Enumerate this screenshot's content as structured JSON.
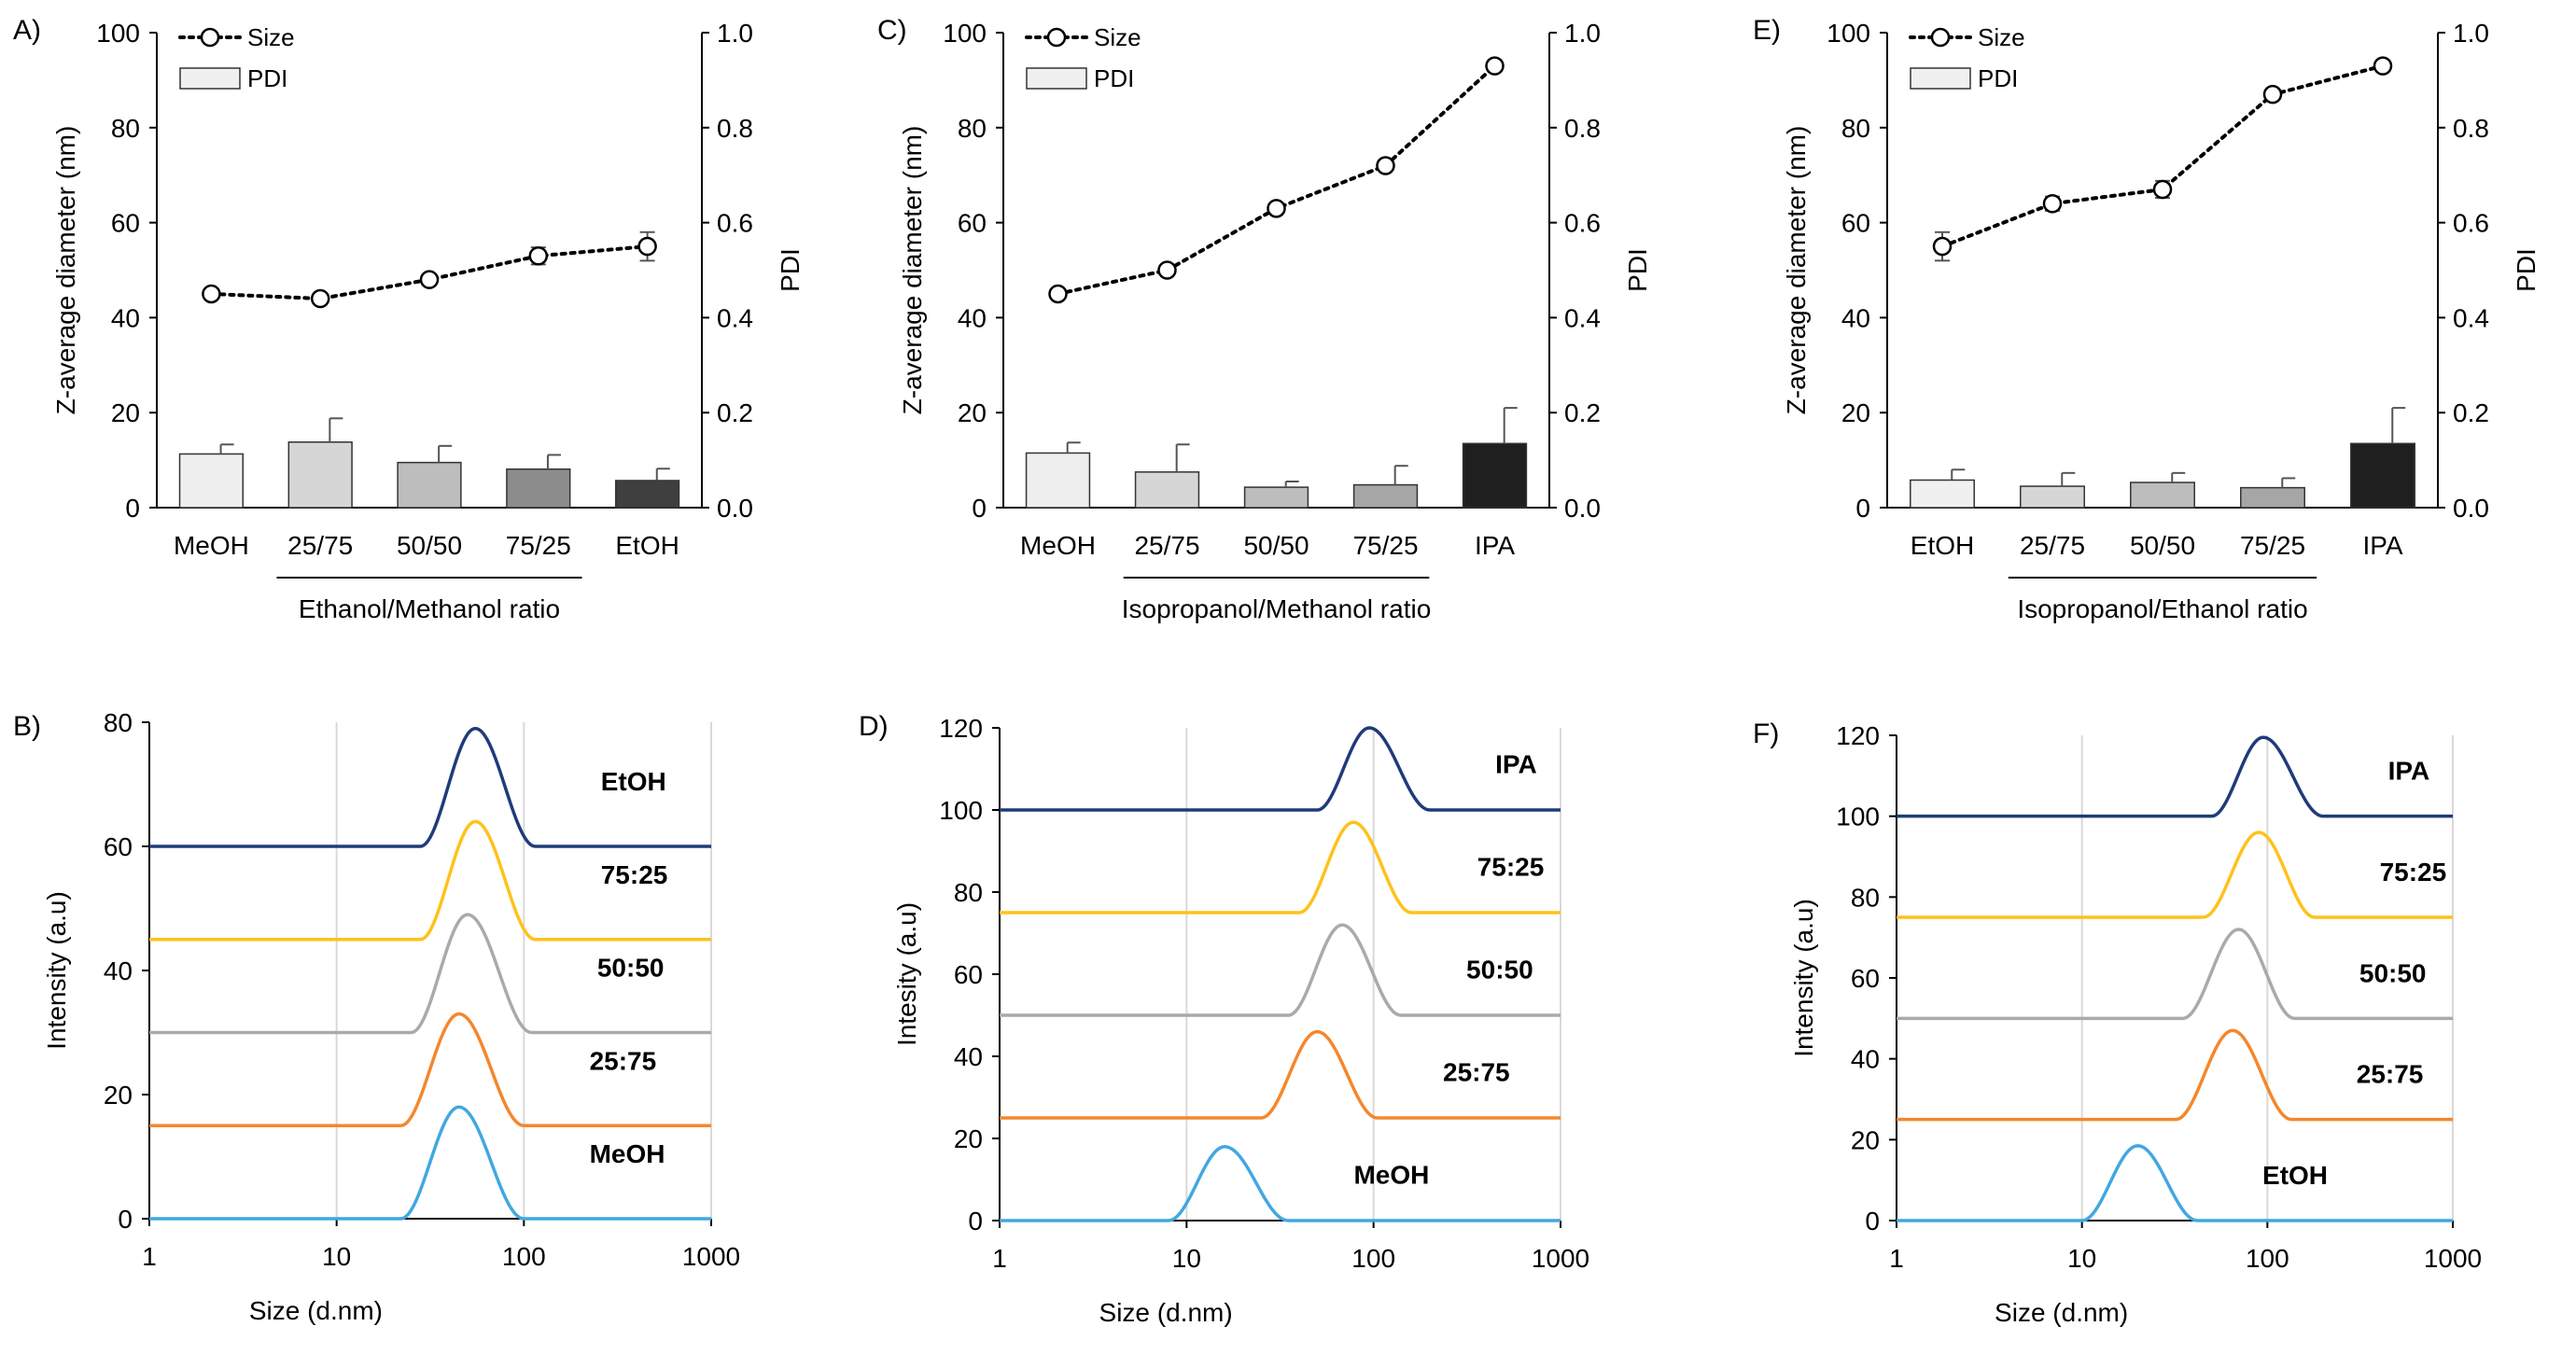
{
  "chart_data": [
    {
      "id": "A",
      "panel_label": "A)",
      "type": "bar+line",
      "ylabel": "Z-average diameter (nm)",
      "y2label": "PDI",
      "ylim": [
        0,
        100
      ],
      "y2lim": [
        0,
        1
      ],
      "yticks": [
        0,
        20,
        40,
        60,
        80,
        100
      ],
      "y2ticks": [
        "0.0",
        "0.2",
        "0.4",
        "0.6",
        "0.8",
        "1.0"
      ],
      "categories": [
        "MeOH",
        "25/75",
        "50/50",
        "75/25",
        "EtOH"
      ],
      "xlabel": "Ethanol/Methanol ratio",
      "bracket": [
        1,
        3
      ],
      "legend": {
        "size": "Size",
        "pdi": "PDI"
      },
      "size": [
        45,
        44,
        48,
        53,
        55
      ],
      "size_err": [
        0.8,
        0.6,
        1.0,
        1.8,
        3.0
      ],
      "pdi": [
        0.113,
        0.138,
        0.095,
        0.081,
        0.057
      ],
      "pdi_err": [
        0.02,
        0.05,
        0.035,
        0.03,
        0.025
      ],
      "bar_colors": [
        "#eeeeee",
        "#d6d6d6",
        "#bdbdbd",
        "#8c8c8c",
        "#3f3f3f"
      ]
    },
    {
      "id": "C",
      "panel_label": "C)",
      "type": "bar+line",
      "ylabel": "Z-average diameter (nm)",
      "y2label": "PDI",
      "ylim": [
        0,
        100
      ],
      "y2lim": [
        0,
        1
      ],
      "yticks": [
        0,
        20,
        40,
        60,
        80,
        100
      ],
      "y2ticks": [
        "0.0",
        "0.2",
        "0.4",
        "0.6",
        "0.8",
        "1.0"
      ],
      "categories": [
        "MeOH",
        "25/75",
        "50/50",
        "75/25",
        "IPA"
      ],
      "xlabel": "Isopropanol/Methanol ratio",
      "bracket": [
        1,
        3
      ],
      "legend": {
        "size": "Size",
        "pdi": "PDI"
      },
      "size": [
        45,
        50,
        63,
        72,
        93
      ],
      "size_err": [
        0.6,
        0.6,
        0.8,
        1.0,
        0.8
      ],
      "pdi": [
        0.115,
        0.075,
        0.043,
        0.048,
        0.135
      ],
      "pdi_err": [
        0.022,
        0.058,
        0.012,
        0.04,
        0.075
      ],
      "bar_colors": [
        "#eeeeee",
        "#d6d6d6",
        "#bdbdbd",
        "#a6a6a6",
        "#1f1f1f"
      ]
    },
    {
      "id": "E",
      "panel_label": "E)",
      "type": "bar+line",
      "ylabel": "Z-average diameter (nm)",
      "y2label": "PDI",
      "ylim": [
        0,
        100
      ],
      "y2lim": [
        0,
        1
      ],
      "yticks": [
        0,
        20,
        40,
        60,
        80,
        100
      ],
      "y2ticks": [
        "0.0",
        "0.2",
        "0.4",
        "0.6",
        "0.8",
        "1.0"
      ],
      "categories": [
        "EtOH",
        "25/75",
        "50/50",
        "75/25",
        "IPA"
      ],
      "xlabel": "Isopropanol/Ethanol ratio",
      "bracket": [
        1,
        3
      ],
      "legend": {
        "size": "Size",
        "pdi": "PDI"
      },
      "size": [
        55,
        64,
        67,
        87,
        93
      ],
      "size_err": [
        3.0,
        1.5,
        1.8,
        1.0,
        0.8
      ],
      "pdi": [
        0.058,
        0.045,
        0.053,
        0.042,
        0.135
      ],
      "pdi_err": [
        0.022,
        0.028,
        0.02,
        0.02,
        0.075
      ],
      "bar_colors": [
        "#f0f0f0",
        "#d6d6d6",
        "#bdbdbd",
        "#a6a6a6",
        "#1f1f1f"
      ]
    },
    {
      "id": "B",
      "panel_label": "B)",
      "type": "line-logx",
      "ylabel": "Intensity (a.u)",
      "xlabel": "Size (d.nm)",
      "ylim": [
        0,
        80
      ],
      "yticks": [
        0,
        20,
        40,
        60,
        80
      ],
      "xticks": [
        1,
        10,
        100,
        1000
      ],
      "xlim": [
        1,
        1000
      ],
      "series": [
        {
          "name": "MeOH",
          "color": "#41a8e0",
          "offset": 0,
          "peak": 45,
          "height": 18,
          "start": 22,
          "end": 100
        },
        {
          "name": "25:75",
          "color": "#f4872d",
          "offset": 15,
          "peak": 45,
          "height": 18,
          "start": 22,
          "end": 100
        },
        {
          "name": "50:50",
          "color": "#aaaaaa",
          "offset": 30,
          "peak": 50,
          "height": 19,
          "start": 25,
          "end": 110
        },
        {
          "name": "75:25",
          "color": "#ffc21a",
          "offset": 45,
          "peak": 55,
          "height": 19,
          "start": 28,
          "end": 115
        },
        {
          "name": "EtOH",
          "color": "#1f3b7a",
          "offset": 60,
          "peak": 55,
          "height": 19,
          "start": 28,
          "end": 115
        }
      ]
    },
    {
      "id": "D",
      "panel_label": "D)",
      "type": "line-logx",
      "ylabel": "Intesity (a.u)",
      "xlabel": "Size (d.nm)",
      "ylim": [
        0,
        120
      ],
      "yticks": [
        0,
        20,
        40,
        60,
        80,
        100,
        120
      ],
      "xticks": [
        1,
        10,
        100,
        1000
      ],
      "xlim": [
        1,
        1000
      ],
      "series": [
        {
          "name": "MeOH",
          "color": "#41a8e0",
          "offset": 0,
          "peak": 16,
          "height": 18,
          "start": 8,
          "end": 35
        },
        {
          "name": "25:75",
          "color": "#f4872d",
          "offset": 25,
          "peak": 50,
          "height": 21,
          "start": 25,
          "end": 105
        },
        {
          "name": "50:50",
          "color": "#aaaaaa",
          "offset": 50,
          "peak": 68,
          "height": 22,
          "start": 35,
          "end": 140
        },
        {
          "name": "75:25",
          "color": "#ffc21a",
          "offset": 75,
          "peak": 78,
          "height": 22,
          "start": 40,
          "end": 160
        },
        {
          "name": "IPA",
          "color": "#1f3b7a",
          "offset": 100,
          "peak": 95,
          "height": 20,
          "start": 50,
          "end": 200
        }
      ]
    },
    {
      "id": "F",
      "panel_label": "F)",
      "type": "line-logx",
      "ylabel": "Intensity (a.u)",
      "xlabel": "Size (d.nm)",
      "ylim": [
        0,
        120
      ],
      "yticks": [
        0,
        20,
        40,
        60,
        80,
        100,
        120
      ],
      "xticks": [
        1,
        10,
        100,
        1000
      ],
      "xlim": [
        1,
        1000
      ],
      "series": [
        {
          "name": "EtOH",
          "color": "#41a8e0",
          "offset": 0,
          "peak": 20,
          "height": 18.5,
          "start": 10,
          "end": 42
        },
        {
          "name": "25:75",
          "color": "#f4872d",
          "offset": 25,
          "peak": 65,
          "height": 22,
          "start": 32,
          "end": 135
        },
        {
          "name": "50:50",
          "color": "#aaaaaa",
          "offset": 50,
          "peak": 70,
          "height": 22,
          "start": 35,
          "end": 140
        },
        {
          "name": "75:25",
          "color": "#ffc21a",
          "offset": 75,
          "peak": 90,
          "height": 21,
          "start": 45,
          "end": 180
        },
        {
          "name": "IPA",
          "color": "#1f3b7a",
          "offset": 100,
          "peak": 95,
          "height": 19.5,
          "start": 50,
          "end": 200
        }
      ]
    }
  ]
}
